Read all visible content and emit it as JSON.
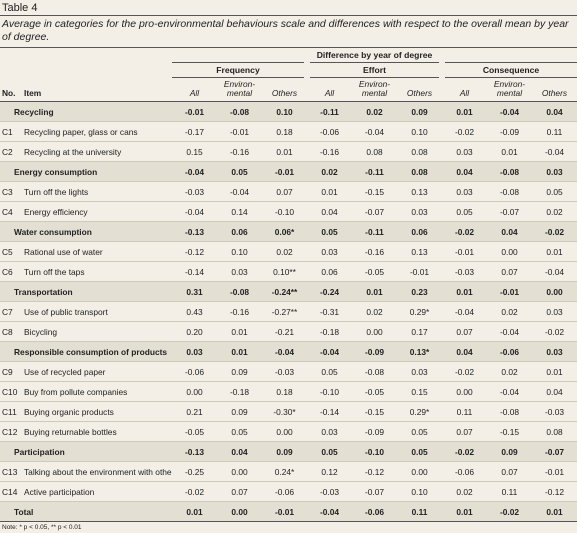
{
  "title": "Table 4",
  "caption": "Average in categories for the pro-environmental behaviours scale and differences with respect to the overall mean by year of degree.",
  "header": {
    "span": "Difference by year of degree",
    "groups": [
      "Frequency",
      "Effort",
      "Consequence"
    ],
    "no": "No.",
    "item": "Item",
    "columns": [
      "All",
      "Environ-mental",
      "Others",
      "All",
      "Environ-mental",
      "Others",
      "All",
      "Environ-mental",
      "Others"
    ]
  },
  "rows": [
    {
      "item": "Recycling",
      "cells": [
        "-0.01",
        "-0.08",
        "0.10",
        "-0.11",
        "0.02",
        "0.09",
        "0.01",
        "-0.04",
        "0.04"
      ]
    },
    {
      "no": "C1",
      "item": "Recycling paper, glass or cans",
      "cells": [
        "-0.17",
        "-0.01",
        "0.18",
        "-0.06",
        "-0.04",
        "0.10",
        "-0.02",
        "-0.09",
        "0.11"
      ]
    },
    {
      "no": "C2",
      "item": "Recycling at the university",
      "cells": [
        "0.15",
        "-0.16",
        "0.01",
        "-0.16",
        "0.08",
        "0.08",
        "0.03",
        "0.01",
        "-0.04"
      ]
    },
    {
      "item": "Energy consumption",
      "cells": [
        "-0.04",
        "0.05",
        "-0.01",
        "0.02",
        "-0.11",
        "0.08",
        "0.04",
        "-0.08",
        "0.03"
      ]
    },
    {
      "no": "C3",
      "item": "Turn off the lights",
      "cells": [
        "-0.03",
        "-0.04",
        "0.07",
        "0.01",
        "-0.15",
        "0.13",
        "0.03",
        "-0.08",
        "0.05"
      ]
    },
    {
      "no": "C4",
      "item": "Energy efficiency",
      "cells": [
        "-0.04",
        "0.14",
        "-0.10",
        "0.04",
        "-0.07",
        "0.03",
        "0.05",
        "-0.07",
        "0.02"
      ]
    },
    {
      "item": "Water consumption",
      "cells": [
        "-0.13",
        "0.06",
        "0.06*",
        "0.05",
        "-0.11",
        "0.06",
        "-0.02",
        "0.04",
        "-0.02"
      ]
    },
    {
      "no": "C5",
      "item": "Rational use of water",
      "cells": [
        "-0.12",
        "0.10",
        "0.02",
        "0.03",
        "-0.16",
        "0.13",
        "-0.01",
        "0.00",
        "0.01"
      ]
    },
    {
      "no": "C6",
      "item": "Turn off the taps",
      "cells": [
        "-0.14",
        "0.03",
        "0.10**",
        "0.06",
        "-0.05",
        "-0.01",
        "-0.03",
        "0.07",
        "-0.04"
      ]
    },
    {
      "item": "Transportation",
      "cells": [
        "0.31",
        "-0.08",
        "-0.24**",
        "-0.24",
        "0.01",
        "0.23",
        "0.01",
        "-0.01",
        "0.00"
      ]
    },
    {
      "no": "C7",
      "item": "Use of public transport",
      "cells": [
        "0.43",
        "-0.16",
        "-0.27**",
        "-0.31",
        "0.02",
        "0.29*",
        "-0.04",
        "0.02",
        "0.03"
      ]
    },
    {
      "no": "C8",
      "item": "Bicycling",
      "cells": [
        "0.20",
        "0.01",
        "-0.21",
        "-0.18",
        "0.00",
        "0.17",
        "0.07",
        "-0.04",
        "-0.02"
      ]
    },
    {
      "item": "Responsible consumption of products",
      "cells": [
        "0.03",
        "0.01",
        "-0.04",
        "-0.04",
        "-0.09",
        "0.13*",
        "0.04",
        "-0.06",
        "0.03"
      ]
    },
    {
      "no": "C9",
      "item": "Use of recycled paper",
      "cells": [
        "-0.06",
        "0.09",
        "-0.03",
        "0.05",
        "-0.08",
        "0.03",
        "-0.02",
        "0.02",
        "0.01"
      ]
    },
    {
      "no": "C10",
      "item": "Buy from pollute companies",
      "cells": [
        "0.00",
        "-0.18",
        "0.18",
        "-0.10",
        "-0.05",
        "0.15",
        "0.00",
        "-0.04",
        "0.04"
      ]
    },
    {
      "no": "C11",
      "item": "Buying organic products",
      "cells": [
        "0.21",
        "0.09",
        "-0.30*",
        "-0.14",
        "-0.15",
        "0.29*",
        "0.11",
        "-0.08",
        "-0.03"
      ]
    },
    {
      "no": "C12",
      "item": "Buying returnable bottles",
      "cells": [
        "-0.05",
        "0.05",
        "0.00",
        "0.03",
        "-0.09",
        "0.05",
        "0.07",
        "-0.15",
        "0.08"
      ]
    },
    {
      "item": "Participation",
      "cells": [
        "-0.13",
        "0.04",
        "0.09",
        "0.05",
        "-0.10",
        "0.05",
        "-0.02",
        "0.09",
        "-0.07"
      ]
    },
    {
      "no": "C13",
      "item": "Talking about the environment with others",
      "cells": [
        "-0.25",
        "0.00",
        "0.24*",
        "0.12",
        "-0.12",
        "0.00",
        "-0.06",
        "0.07",
        "-0.01"
      ]
    },
    {
      "no": "C14",
      "item": "Active participation",
      "cells": [
        "-0.02",
        "0.07",
        "-0.06",
        "-0.03",
        "-0.07",
        "0.10",
        "0.02",
        "0.11",
        "-0.12"
      ]
    },
    {
      "item": "Total",
      "cells": [
        "0.01",
        "0.00",
        "-0.01",
        "-0.04",
        "-0.06",
        "0.11",
        "0.01",
        "-0.02",
        "0.01"
      ]
    }
  ],
  "note": "Note: * p < 0.05, ** p < 0.01"
}
